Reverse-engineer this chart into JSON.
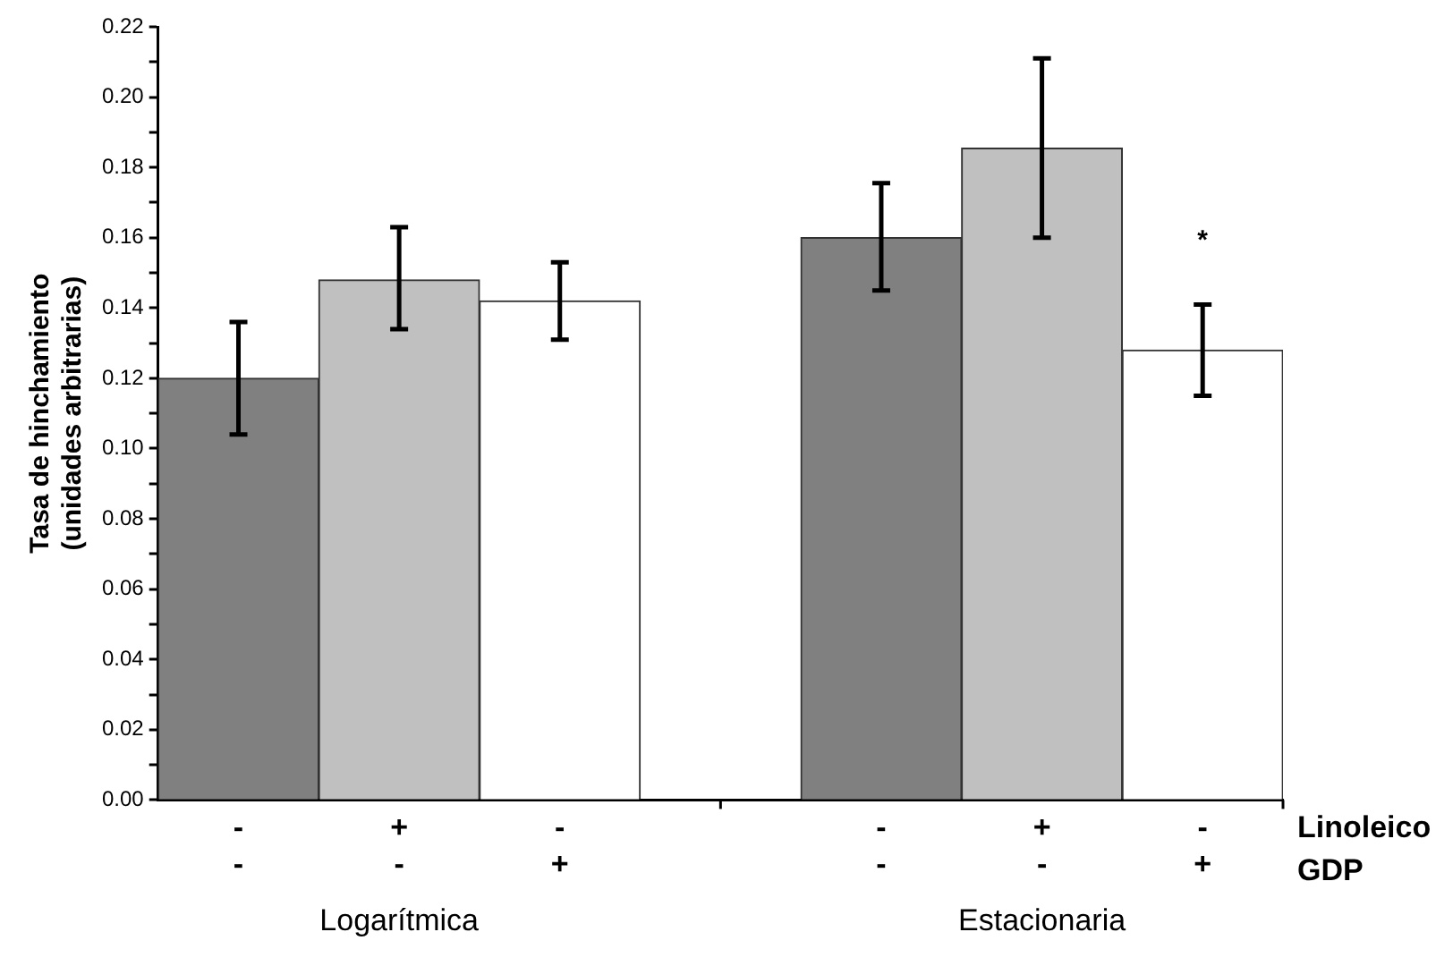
{
  "chart_data": {
    "type": "bar",
    "ylabel": "Tasa de hinchamiento\n(unidades arbitrarias)",
    "categories": [
      "-\n-",
      "+\n-",
      "-\n+",
      null,
      "-\n-",
      "+\n-",
      "-\n+"
    ],
    "values": [
      0.12,
      0.148,
      0.142,
      null,
      0.16,
      0.1855,
      0.128
    ],
    "colors": [
      "#808080",
      "#c0c0c0",
      "#ffffff",
      null,
      "#808080",
      "#c0c0c0",
      "#ffffff"
    ],
    "errors": [
      [
        0.104,
        0.136
      ],
      [
        0.134,
        0.163
      ],
      [
        0.131,
        0.153
      ],
      null,
      [
        0.145,
        0.1755
      ],
      [
        0.16,
        0.211
      ],
      [
        0.115,
        0.141
      ]
    ],
    "ylim": [
      0,
      0.22
    ],
    "yticks": [
      {
        "value": 0,
        "label": "0.00"
      },
      {
        "value": 0.01,
        "label": null
      },
      {
        "value": 0.02,
        "label": "0.02"
      },
      {
        "value": 0.03,
        "label": null
      },
      {
        "value": 0.04,
        "label": "0.04"
      },
      {
        "value": 0.05,
        "label": null
      },
      {
        "value": 0.06,
        "label": "0.06"
      },
      {
        "value": 0.07,
        "label": null
      },
      {
        "value": 0.08,
        "label": "0.08"
      },
      {
        "value": 0.09,
        "label": null
      },
      {
        "value": 0.1,
        "label": "0.10"
      },
      {
        "value": 0.11,
        "label": null
      },
      {
        "value": 0.12,
        "label": "0.12"
      },
      {
        "value": 0.13,
        "label": null
      },
      {
        "value": 0.14,
        "label": "0.14"
      },
      {
        "value": 0.15,
        "label": null
      },
      {
        "value": 0.16,
        "label": "0.16"
      },
      {
        "value": 0.17,
        "label": null
      },
      {
        "value": 0.18,
        "label": "0.18"
      },
      {
        "value": 0.19,
        "label": null
      },
      {
        "value": 0.2,
        "label": "0.20"
      },
      {
        "value": 0.21,
        "label": null
      },
      {
        "value": 0.22,
        "label": "0.22"
      }
    ],
    "grid": false,
    "legend": false,
    "annotations": [
      "*",
      "Linoleico",
      "GDP",
      "Logarítmica",
      "Estacionaria"
    ]
  }
}
